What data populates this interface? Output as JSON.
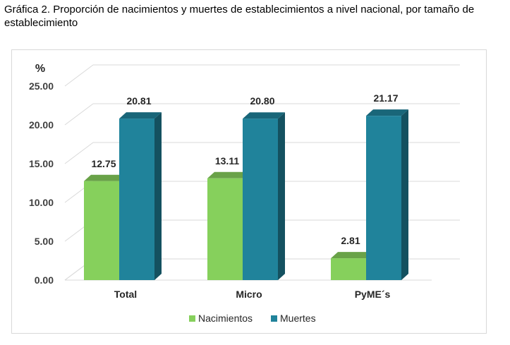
{
  "caption": "Gráfica 2. Proporción de nacimientos y muertes de establecimientos a nivel nacional, por tamaño de establecimiento",
  "chart_data": {
    "type": "bar",
    "title": "",
    "xlabel": "",
    "ylabel": "%",
    "categories": [
      "Total",
      "Micro",
      "PyME´s"
    ],
    "series": [
      {
        "name": "Nacimientos",
        "values": [
          12.75,
          13.11,
          2.81
        ],
        "color": "#86d05c"
      },
      {
        "name": "Muertes",
        "values": [
          20.81,
          20.8,
          21.17
        ],
        "color": "#20839b"
      }
    ],
    "value_labels": [
      [
        "12.75",
        "13.11",
        "2.81"
      ],
      [
        "20.81",
        "20.80",
        "21.17"
      ]
    ],
    "ylim": [
      0,
      25
    ],
    "yticks": [
      "0.00",
      "5.00",
      "10.00",
      "15.00",
      "20.00",
      "25.00"
    ],
    "grid": true,
    "legend_position": "bottom",
    "style": "3d-columns"
  }
}
